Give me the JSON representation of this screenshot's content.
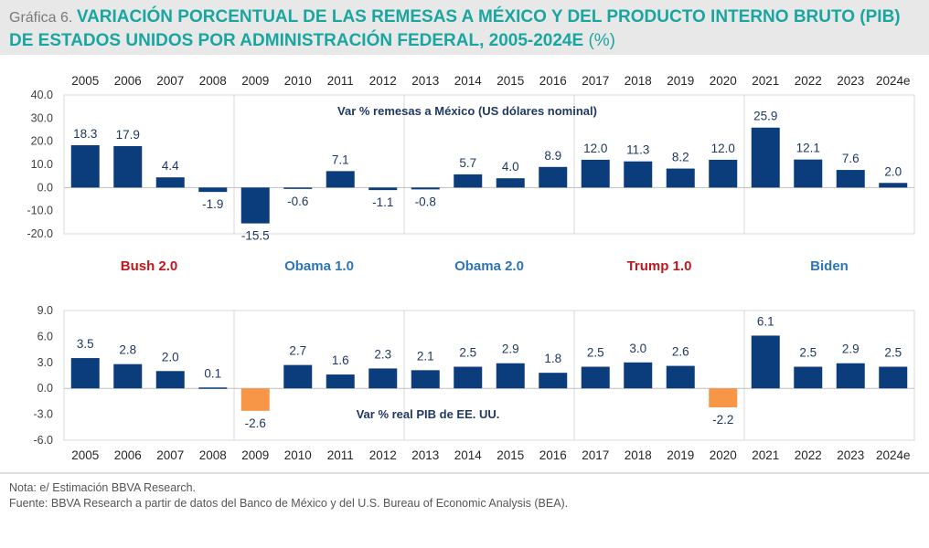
{
  "header": {
    "prefix": "Gráfica 6. ",
    "title": "VARIACIÓN PORCENTUAL DE LAS REMESAS A MÉXICO Y DEL PRODUCTO INTERNO BRUTO (PIB) DE ESTADOS UNIDOS POR ADMINISTRACIÓN FEDERAL, 2005-2024E",
    "unit": " (%)"
  },
  "chart_data": [
    {
      "type": "bar",
      "title": "Var % remesas a México (US dólares nominal)",
      "categories": [
        "2005",
        "2006",
        "2007",
        "2008",
        "2009",
        "2010",
        "2011",
        "2012",
        "2013",
        "2014",
        "2015",
        "2016",
        "2017",
        "2018",
        "2019",
        "2020",
        "2021",
        "2022",
        "2023",
        "2024e"
      ],
      "values": [
        18.3,
        17.9,
        4.4,
        -1.9,
        -15.5,
        -0.6,
        7.1,
        -1.1,
        -0.8,
        5.7,
        4.0,
        8.9,
        12.0,
        11.3,
        8.2,
        12.0,
        25.9,
        12.1,
        7.6,
        2.0
      ],
      "value_labels": [
        "18.3",
        "17.9",
        "4.4",
        "-1.9",
        "-15.5",
        "-0.6",
        "7.1",
        "-1.1",
        "-0.8",
        "5.7",
        "4.0",
        "8.9",
        "12.0",
        "11.3",
        "8.2",
        "12.0",
        "25.9",
        "12.1",
        "7.6",
        "2.0"
      ],
      "ylim": [
        -20,
        40
      ],
      "yticks": [
        "40.0",
        "30.0",
        "20.0",
        "10.0",
        "0.0",
        "-10.0",
        "-20.0"
      ],
      "ytick_values": [
        40,
        30,
        20,
        10,
        0,
        -10,
        -20
      ],
      "color": "#0b3c7c",
      "negative_color": "#0b3c7c"
    },
    {
      "type": "bar",
      "title": "Var % real PIB de EE. UU.",
      "categories": [
        "2005",
        "2006",
        "2007",
        "2008",
        "2009",
        "2010",
        "2011",
        "2012",
        "2013",
        "2014",
        "2015",
        "2016",
        "2017",
        "2018",
        "2019",
        "2020",
        "2021",
        "2022",
        "2023",
        "2024e"
      ],
      "values": [
        3.5,
        2.8,
        2.0,
        0.1,
        -2.6,
        2.7,
        1.6,
        2.3,
        2.1,
        2.5,
        2.9,
        1.8,
        2.5,
        3.0,
        2.6,
        -2.2,
        6.1,
        2.5,
        2.9,
        2.5
      ],
      "value_labels": [
        "3.5",
        "2.8",
        "2.0",
        "0.1",
        "-2.6",
        "2.7",
        "1.6",
        "2.3",
        "2.1",
        "2.5",
        "2.9",
        "1.8",
        "2.5",
        "3.0",
        "2.6",
        "-2.2",
        "6.1",
        "2.5",
        "2.9",
        "2.5"
      ],
      "ylim": [
        -6,
        9
      ],
      "yticks": [
        "9.0",
        "6.0",
        "3.0",
        "0.0",
        "-3.0",
        "-6.0"
      ],
      "ytick_values": [
        9,
        6,
        3,
        0,
        -3,
        -6
      ],
      "color": "#0b3c7c",
      "negative_color": "#f79646"
    }
  ],
  "administrations": [
    {
      "name": "Bush 2.0",
      "color": "#c0161c"
    },
    {
      "name": "Obama 1.0",
      "color": "#2e75b6"
    },
    {
      "name": "Obama 2.0",
      "color": "#2e75b6"
    },
    {
      "name": "Trump 1.0",
      "color": "#c0161c"
    },
    {
      "name": "Biden",
      "color": "#2e75b6"
    }
  ],
  "notes": {
    "nota": "Nota: e/ Estimación BBVA Research.",
    "fuente": "Fuente: BBVA Research a partir de datos del Banco de México y del U.S. Bureau of Economic Analysis (BEA)."
  }
}
